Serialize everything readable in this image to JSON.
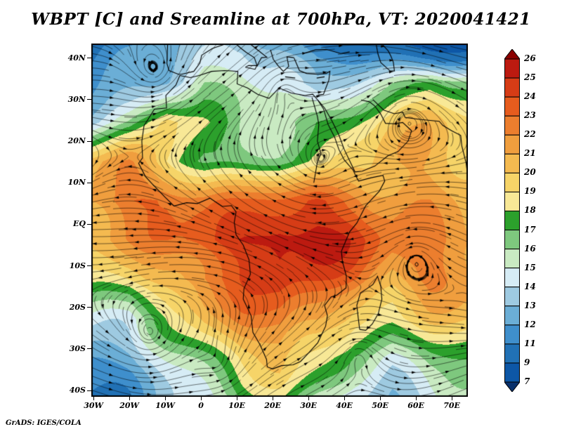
{
  "page": {
    "background": "#ffffff"
  },
  "chart_data": {
    "type": "heatmap",
    "subtype": "filled-contour-with-streamlines",
    "title": "WBPT [C] and Sreamline at 700hPa, VT: 2020041421",
    "footer": "GrADS: IGES/COLA",
    "x_ticks": [
      {
        "label": "30W",
        "lon": -30
      },
      {
        "label": "20W",
        "lon": -20
      },
      {
        "label": "10W",
        "lon": -10
      },
      {
        "label": "0",
        "lon": 0
      },
      {
        "label": "10E",
        "lon": 10
      },
      {
        "label": "20E",
        "lon": 20
      },
      {
        "label": "30E",
        "lon": 30
      },
      {
        "label": "40E",
        "lon": 40
      },
      {
        "label": "50E",
        "lon": 50
      },
      {
        "label": "60E",
        "lon": 60
      },
      {
        "label": "70E",
        "lon": 70
      }
    ],
    "y_ticks": [
      {
        "label": "40N",
        "lat": 40
      },
      {
        "label": "30N",
        "lat": 30
      },
      {
        "label": "20N",
        "lat": 20
      },
      {
        "label": "10N",
        "lat": 10
      },
      {
        "label": "EQ",
        "lat": 0
      },
      {
        "label": "10S",
        "lat": -10
      },
      {
        "label": "20S",
        "lat": -20
      },
      {
        "label": "30S",
        "lat": -30
      },
      {
        "label": "40S",
        "lat": -40
      }
    ],
    "lon_range": [
      -30.6,
      74.5
    ],
    "lat_range": [
      -41.5,
      43.5
    ],
    "colorbar": {
      "labels": [
        "26",
        "25",
        "24",
        "23",
        "22",
        "21",
        "20",
        "19",
        "18",
        "17",
        "16",
        "15",
        "14",
        "13",
        "12",
        "11",
        "9",
        "7"
      ],
      "levels": [
        7,
        9,
        11,
        12,
        13,
        14,
        15,
        16,
        17,
        18,
        19,
        20,
        21,
        22,
        23,
        24,
        25,
        26
      ],
      "colors": [
        "#08306b",
        "#0d57a6",
        "#2171b5",
        "#3f8fcc",
        "#6baed6",
        "#9ecae1",
        "#d6ecf5",
        "#c9eac2",
        "#7ec87e",
        "#2ca02c",
        "#f8e896",
        "#f6d468",
        "#f4ba50",
        "#f09e3e",
        "#ec7e2e",
        "#e65c1e",
        "#d63c16",
        "#bc1a10",
        "#8b0000"
      ]
    },
    "field": {
      "units": "C",
      "values": [
        [
          10,
          11,
          12,
          13,
          14,
          13,
          11,
          10,
          9,
          8,
          8
        ],
        [
          12,
          13,
          14,
          16,
          15,
          14,
          12,
          14,
          16,
          18,
          17
        ],
        [
          14,
          16,
          20,
          18,
          16,
          16,
          17,
          18,
          19,
          20,
          19
        ],
        [
          20,
          21,
          19,
          17,
          17,
          17,
          18,
          20,
          21,
          21,
          20
        ],
        [
          22,
          23,
          23,
          22,
          22,
          23,
          24,
          23,
          22,
          22,
          21
        ],
        [
          21,
          22,
          23,
          24,
          25,
          26,
          25,
          24,
          22,
          22,
          22
        ],
        [
          18,
          19,
          21,
          23,
          24,
          25,
          24,
          23,
          21,
          22,
          21
        ],
        [
          15,
          14,
          17,
          20,
          22,
          23,
          22,
          20,
          19,
          20,
          20
        ],
        [
          12,
          13,
          15,
          17,
          19,
          20,
          18,
          16,
          15,
          17,
          18
        ],
        [
          11,
          12,
          14,
          15,
          17,
          18,
          16,
          14,
          13,
          14,
          15
        ]
      ]
    },
    "vortices": [
      {
        "lon": -13,
        "lat": 37,
        "s": 75,
        "a": 10
      },
      {
        "lon": 23,
        "lat": 33,
        "s": -45,
        "a": 9
      },
      {
        "lon": 58,
        "lat": 25,
        "s": -60,
        "a": 12
      },
      {
        "lon": 60,
        "lat": -8,
        "s": 70,
        "a": 14
      },
      {
        "lon": -14,
        "lat": -27,
        "s": 65,
        "a": 14
      },
      {
        "lon": 44,
        "lat": -31,
        "s": -55,
        "a": 12
      },
      {
        "lon": 5,
        "lat": -34,
        "s": 45,
        "a": 12
      },
      {
        "lon": 33,
        "lat": 14,
        "s": -35,
        "a": 10
      }
    ]
  }
}
